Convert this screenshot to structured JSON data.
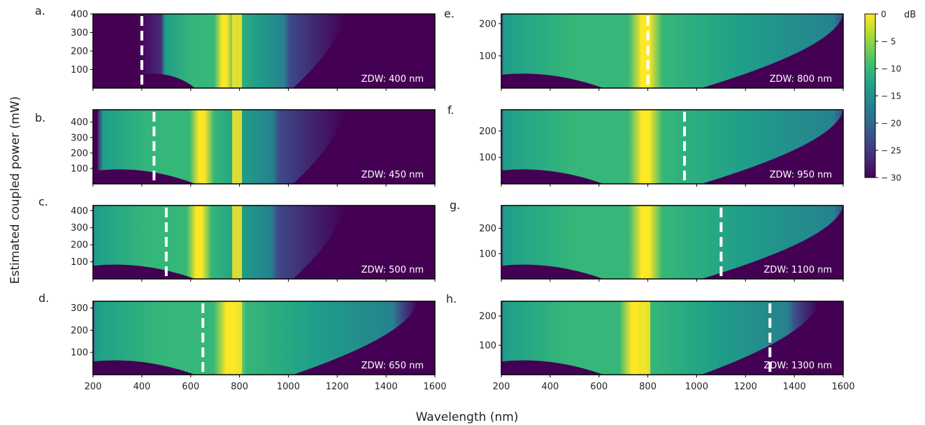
{
  "figure": {
    "ylabel": "Estimated coupled power (mW)",
    "xlabel": "Wavelength (nm)"
  },
  "colorbar": {
    "unit": "dB",
    "range": [
      -30,
      0
    ],
    "ticks": [
      0,
      -5,
      -10,
      -15,
      -20,
      -25,
      -30
    ],
    "tick_labels": [
      "0",
      "− 5",
      "− 10",
      "− 15",
      "− 20",
      "− 25",
      "− 30"
    ],
    "colormap": [
      "#440154",
      "#482878",
      "#3e4989",
      "#31688e",
      "#26828e",
      "#1f9e89",
      "#35b779",
      "#6ece58",
      "#b5de2b",
      "#fde725"
    ]
  },
  "chart_data": [
    {
      "type": "heatmap",
      "panel": "a.",
      "zdw_nm": 400,
      "annotation": "ZDW: 400 nm",
      "xlim": [
        200,
        1600
      ],
      "ylim": [
        0,
        400
      ],
      "yticks": [
        100,
        200,
        300,
        400
      ],
      "xticks": [
        200,
        400,
        600,
        800,
        1000,
        1200,
        1400,
        1600
      ],
      "xtick_labels": [],
      "broadening_extent_nm": [
        380,
        1230
      ],
      "pump_nm": 790
    },
    {
      "type": "heatmap",
      "panel": "b.",
      "zdw_nm": 450,
      "annotation": "ZDW: 450 nm",
      "xlim": [
        200,
        1600
      ],
      "ylim": [
        0,
        480
      ],
      "yticks": [
        100,
        200,
        300,
        400
      ],
      "xticks": [
        200,
        400,
        600,
        800,
        1000,
        1200,
        1400,
        1600
      ],
      "xtick_labels": [],
      "broadening_extent_nm": [
        220,
        1230
      ],
      "pump_nm": 790
    },
    {
      "type": "heatmap",
      "panel": "c.",
      "zdw_nm": 500,
      "annotation": "ZDW: 500 nm",
      "xlim": [
        200,
        1600
      ],
      "ylim": [
        0,
        430
      ],
      "yticks": [
        100,
        200,
        300,
        400
      ],
      "xticks": [
        200,
        400,
        600,
        800,
        1000,
        1200,
        1400,
        1600
      ],
      "xtick_labels": [],
      "broadening_extent_nm": [
        200,
        1230
      ],
      "pump_nm": 790
    },
    {
      "type": "heatmap",
      "panel": "d.",
      "zdw_nm": 650,
      "annotation": "ZDW: 650 nm",
      "xlim": [
        200,
        1600
      ],
      "ylim": [
        0,
        330
      ],
      "yticks": [
        100,
        200,
        300
      ],
      "xticks": [
        200,
        400,
        600,
        800,
        1000,
        1200,
        1400,
        1600
      ],
      "xtick_labels": [
        "200",
        "400",
        "600",
        "800",
        "1000",
        "1200",
        "1400",
        "1600"
      ],
      "broadening_extent_nm": [
        200,
        1530
      ],
      "pump_nm": 790
    },
    {
      "type": "heatmap",
      "panel": "e.",
      "zdw_nm": 800,
      "annotation": "ZDW: 800 nm",
      "xlim": [
        200,
        1600
      ],
      "ylim": [
        0,
        230
      ],
      "yticks": [
        100,
        200
      ],
      "xticks": [
        200,
        400,
        600,
        800,
        1000,
        1200,
        1400,
        1600
      ],
      "xtick_labels": [],
      "broadening_extent_nm": [
        200,
        1600
      ],
      "pump_nm": 790
    },
    {
      "type": "heatmap",
      "panel": "f.",
      "zdw_nm": 950,
      "annotation": "ZDW: 950 nm",
      "xlim": [
        200,
        1600
      ],
      "ylim": [
        0,
        280
      ],
      "yticks": [
        100,
        200
      ],
      "xticks": [
        200,
        400,
        600,
        800,
        1000,
        1200,
        1400,
        1600
      ],
      "xtick_labels": [],
      "broadening_extent_nm": [
        200,
        1600
      ],
      "pump_nm": 790
    },
    {
      "type": "heatmap",
      "panel": "g.",
      "zdw_nm": 1100,
      "annotation": "ZDW: 1100 nm",
      "xlim": [
        200,
        1600
      ],
      "ylim": [
        0,
        290
      ],
      "yticks": [
        100,
        200
      ],
      "xticks": [
        200,
        400,
        600,
        800,
        1000,
        1200,
        1400,
        1600
      ],
      "xtick_labels": [],
      "broadening_extent_nm": [
        200,
        1600
      ],
      "pump_nm": 790
    },
    {
      "type": "heatmap",
      "panel": "h.",
      "zdw_nm": 1300,
      "annotation": "ZDW: 1300 nm",
      "xlim": [
        200,
        1600
      ],
      "ylim": [
        0,
        250
      ],
      "yticks": [
        100,
        200
      ],
      "xticks": [
        200,
        400,
        600,
        800,
        1000,
        1200,
        1400,
        1600
      ],
      "xtick_labels": [
        "200",
        "400",
        "600",
        "800",
        "1000",
        "1200",
        "1400",
        "1600"
      ],
      "broadening_extent_nm": [
        200,
        1500
      ],
      "pump_nm": 790
    }
  ]
}
